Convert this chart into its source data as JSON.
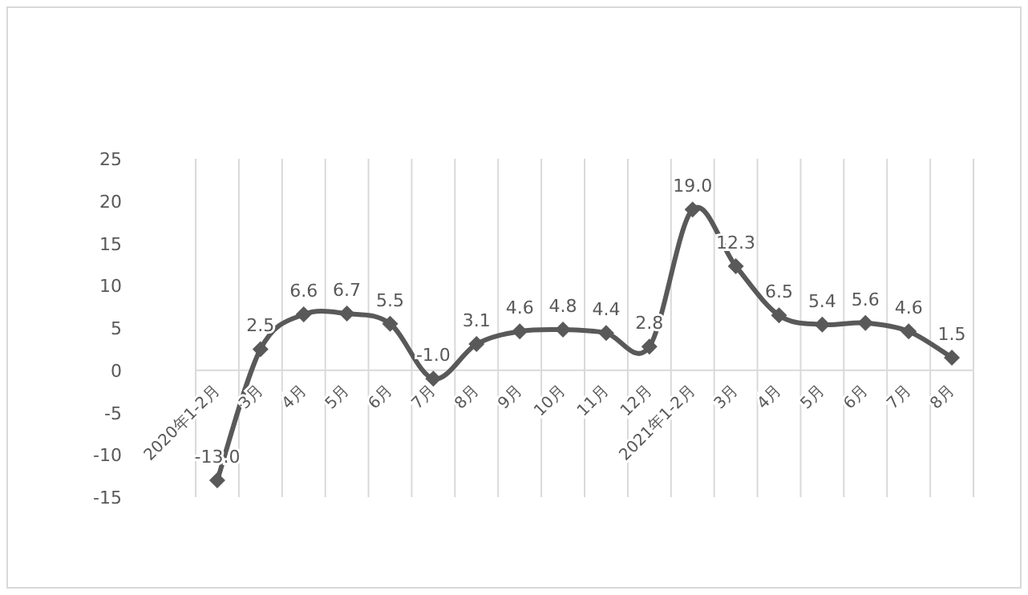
{
  "chart_data": {
    "type": "line",
    "categories": [
      "2020年1-2月",
      "3月",
      "4月",
      "5月",
      "6月",
      "7月",
      "8月",
      "9月",
      "10月",
      "11月",
      "12月",
      "2021年1-2月",
      "3月",
      "4月",
      "5月",
      "6月",
      "7月",
      "8月"
    ],
    "series": [
      {
        "color": "#595959",
        "values": [
          -13.0,
          2.5,
          6.6,
          6.7,
          5.5,
          -1.0,
          3.1,
          4.6,
          4.8,
          4.4,
          2.8,
          19.0,
          12.3,
          6.5,
          5.4,
          5.6,
          4.6,
          1.5
        ]
      }
    ],
    "value_labels": [
      "-13.0",
      "2.5",
      "6.6",
      "6.7",
      "5.5",
      "-1.0",
      "3.1",
      "4.6",
      "4.8",
      "4.4",
      "2.8",
      "19.0",
      "12.3",
      "6.5",
      "5.4",
      "5.6",
      "4.6",
      "1.5"
    ],
    "ylim": [
      -15,
      25
    ],
    "yticks": [
      -15,
      -10,
      -5,
      0,
      5,
      10,
      15,
      20,
      25
    ],
    "grid": "x",
    "marker": "diamond"
  }
}
